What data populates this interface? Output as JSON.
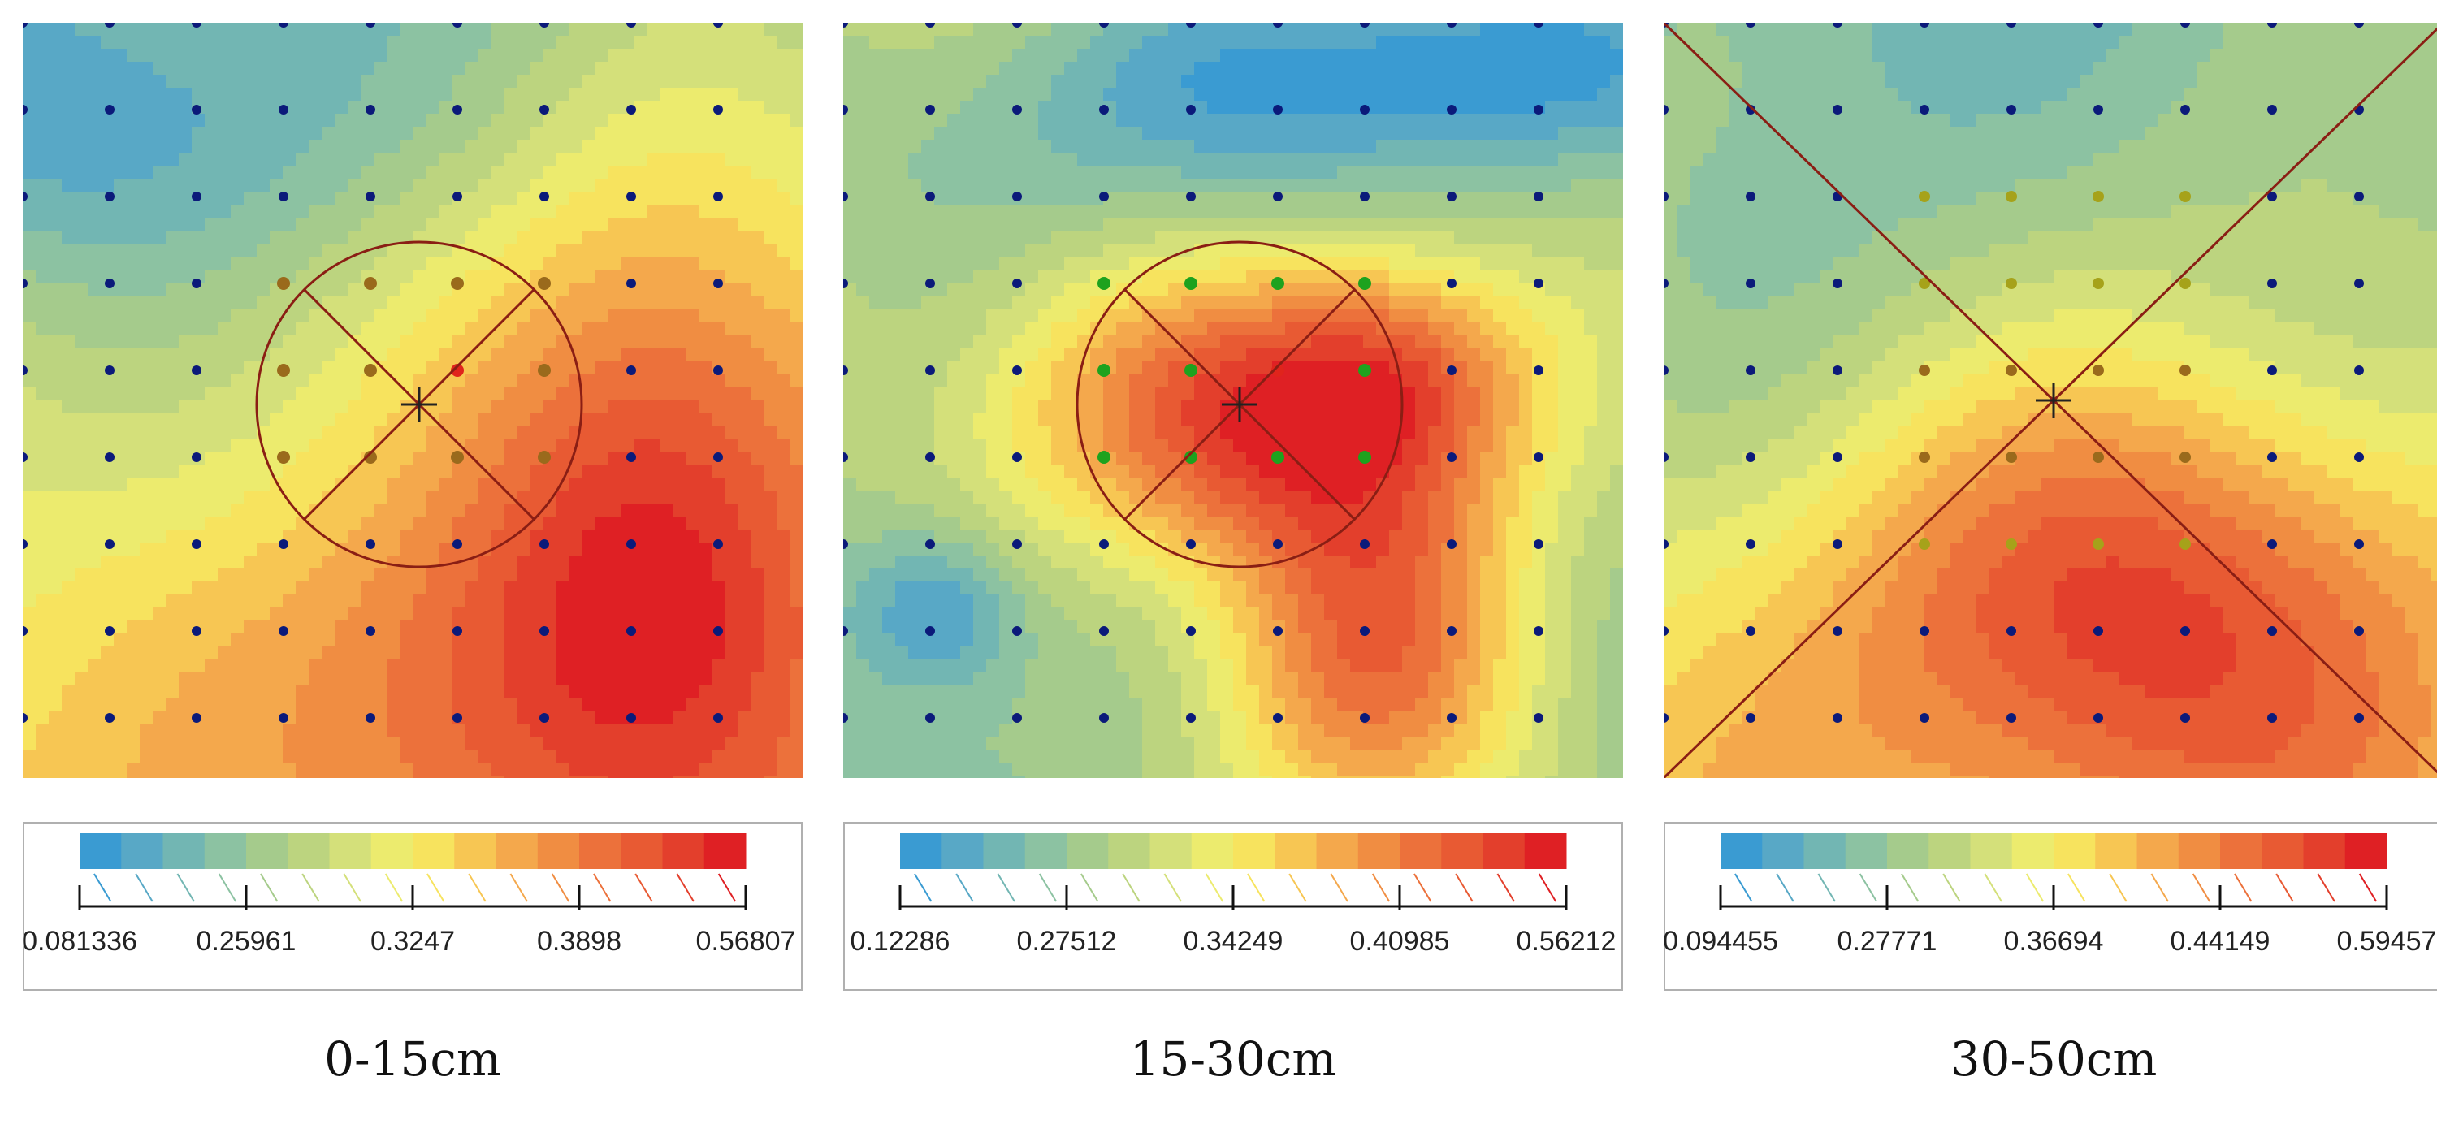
{
  "colors": {
    "ramp": [
      "#3a9bd2",
      "#58a8c6",
      "#72b6b3",
      "#8cc2a2",
      "#a5cb8c",
      "#bcd47f",
      "#d4e07a",
      "#eceb6e",
      "#f7e35e",
      "#f7c653",
      "#f4a84c",
      "#f08d42",
      "#ec713b",
      "#e85a33",
      "#e33f2c",
      "#df2024"
    ],
    "sample_point": "#0b1a7a",
    "inner_point": "#e0241c",
    "ring_point_brown": "#9a6a1c",
    "ring_point_green": "#1ea21e",
    "ring_point_olive": "#a6a21a",
    "overlay_line": "#8a1e14"
  },
  "chart_data": [
    {
      "type": "heatmap",
      "caption": "0-15cm",
      "overlay": "circle",
      "legend_ticks": [
        "0.081336",
        "0.25961",
        "0.3247",
        "0.3898",
        "0.56807"
      ],
      "value_range": [
        0.081336,
        0.56807
      ]
    },
    {
      "type": "heatmap",
      "caption": "15-30cm",
      "overlay": "circle",
      "legend_ticks": [
        "0.12286",
        "0.27512",
        "0.34249",
        "0.40985",
        "0.56212"
      ],
      "value_range": [
        0.12286,
        0.56212
      ]
    },
    {
      "type": "heatmap",
      "caption": "30-50cm",
      "overlay": "cross",
      "legend_ticks": [
        "0.094455",
        "0.27771",
        "0.36694",
        "0.44149",
        "0.59457"
      ],
      "value_range": [
        0.094455,
        0.59457
      ]
    }
  ]
}
